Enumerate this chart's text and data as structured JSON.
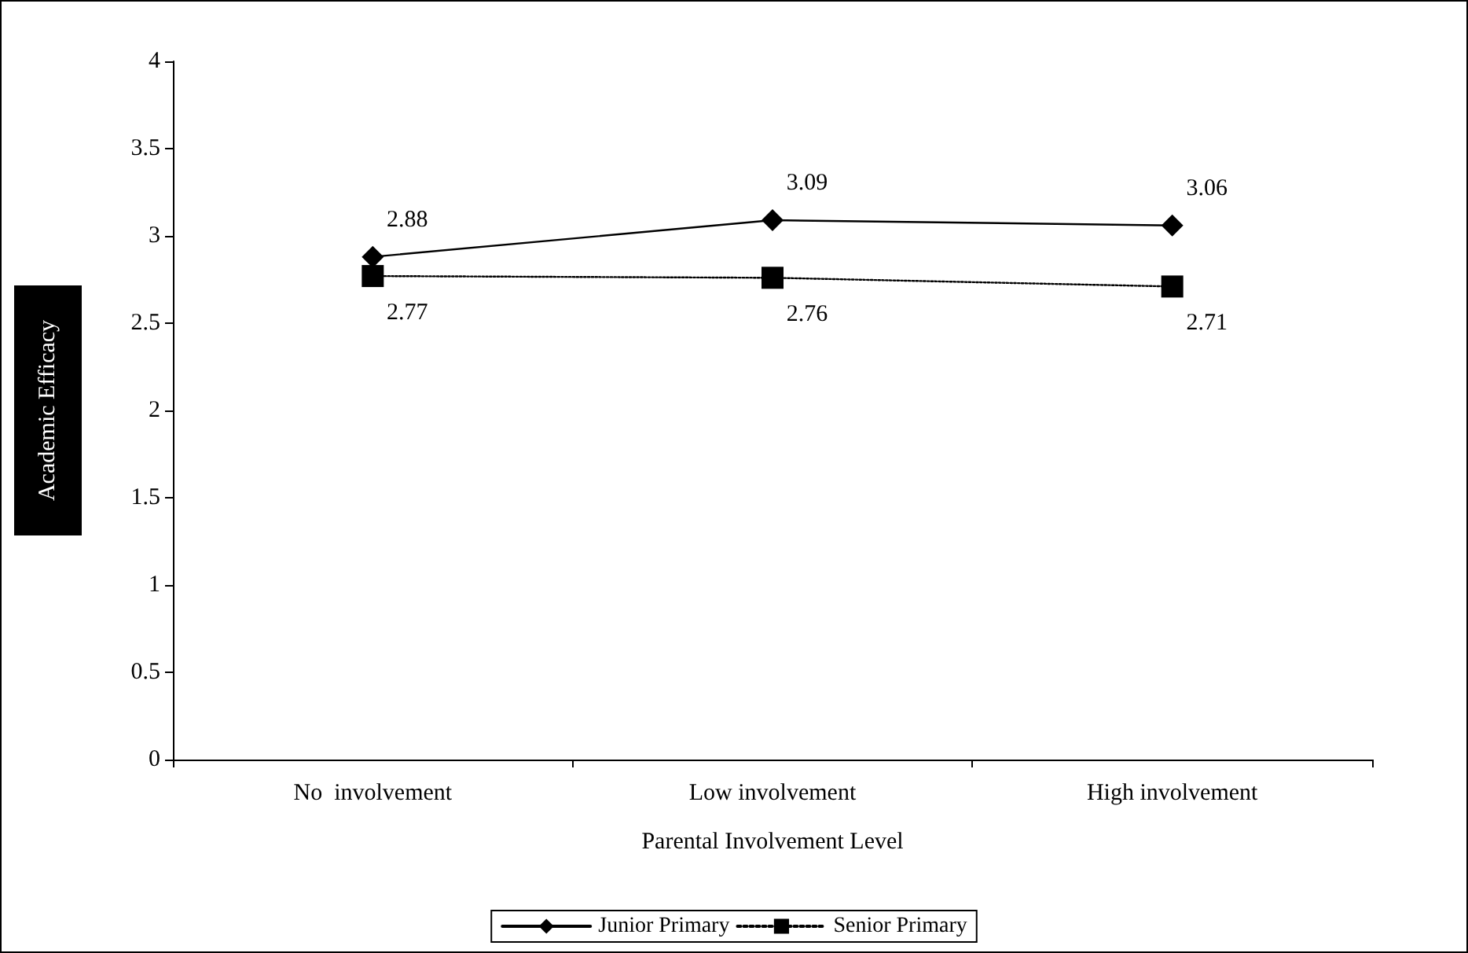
{
  "chart_data": {
    "type": "line",
    "xlabel": "Parental Involvement Level",
    "ylabel": "Academic Efficacy",
    "categories": [
      "No  involvement",
      "Low involvement",
      "High involvement"
    ],
    "series": [
      {
        "name": "Junior Primary",
        "color": "#000000",
        "values": [
          2.88,
          3.09,
          3.06
        ],
        "marker": "diamond",
        "line_style": "solid"
      },
      {
        "name": "Senior Primary",
        "color": "#000000",
        "values": [
          2.77,
          2.76,
          2.71
        ],
        "marker": "square",
        "line_style": "dotted"
      }
    ],
    "ylim": [
      0,
      4
    ],
    "yticks": [
      0,
      0.5,
      1,
      1.5,
      2,
      2.5,
      3,
      3.5,
      4
    ],
    "grid": false,
    "legend": "bottom",
    "data_labels": true
  }
}
